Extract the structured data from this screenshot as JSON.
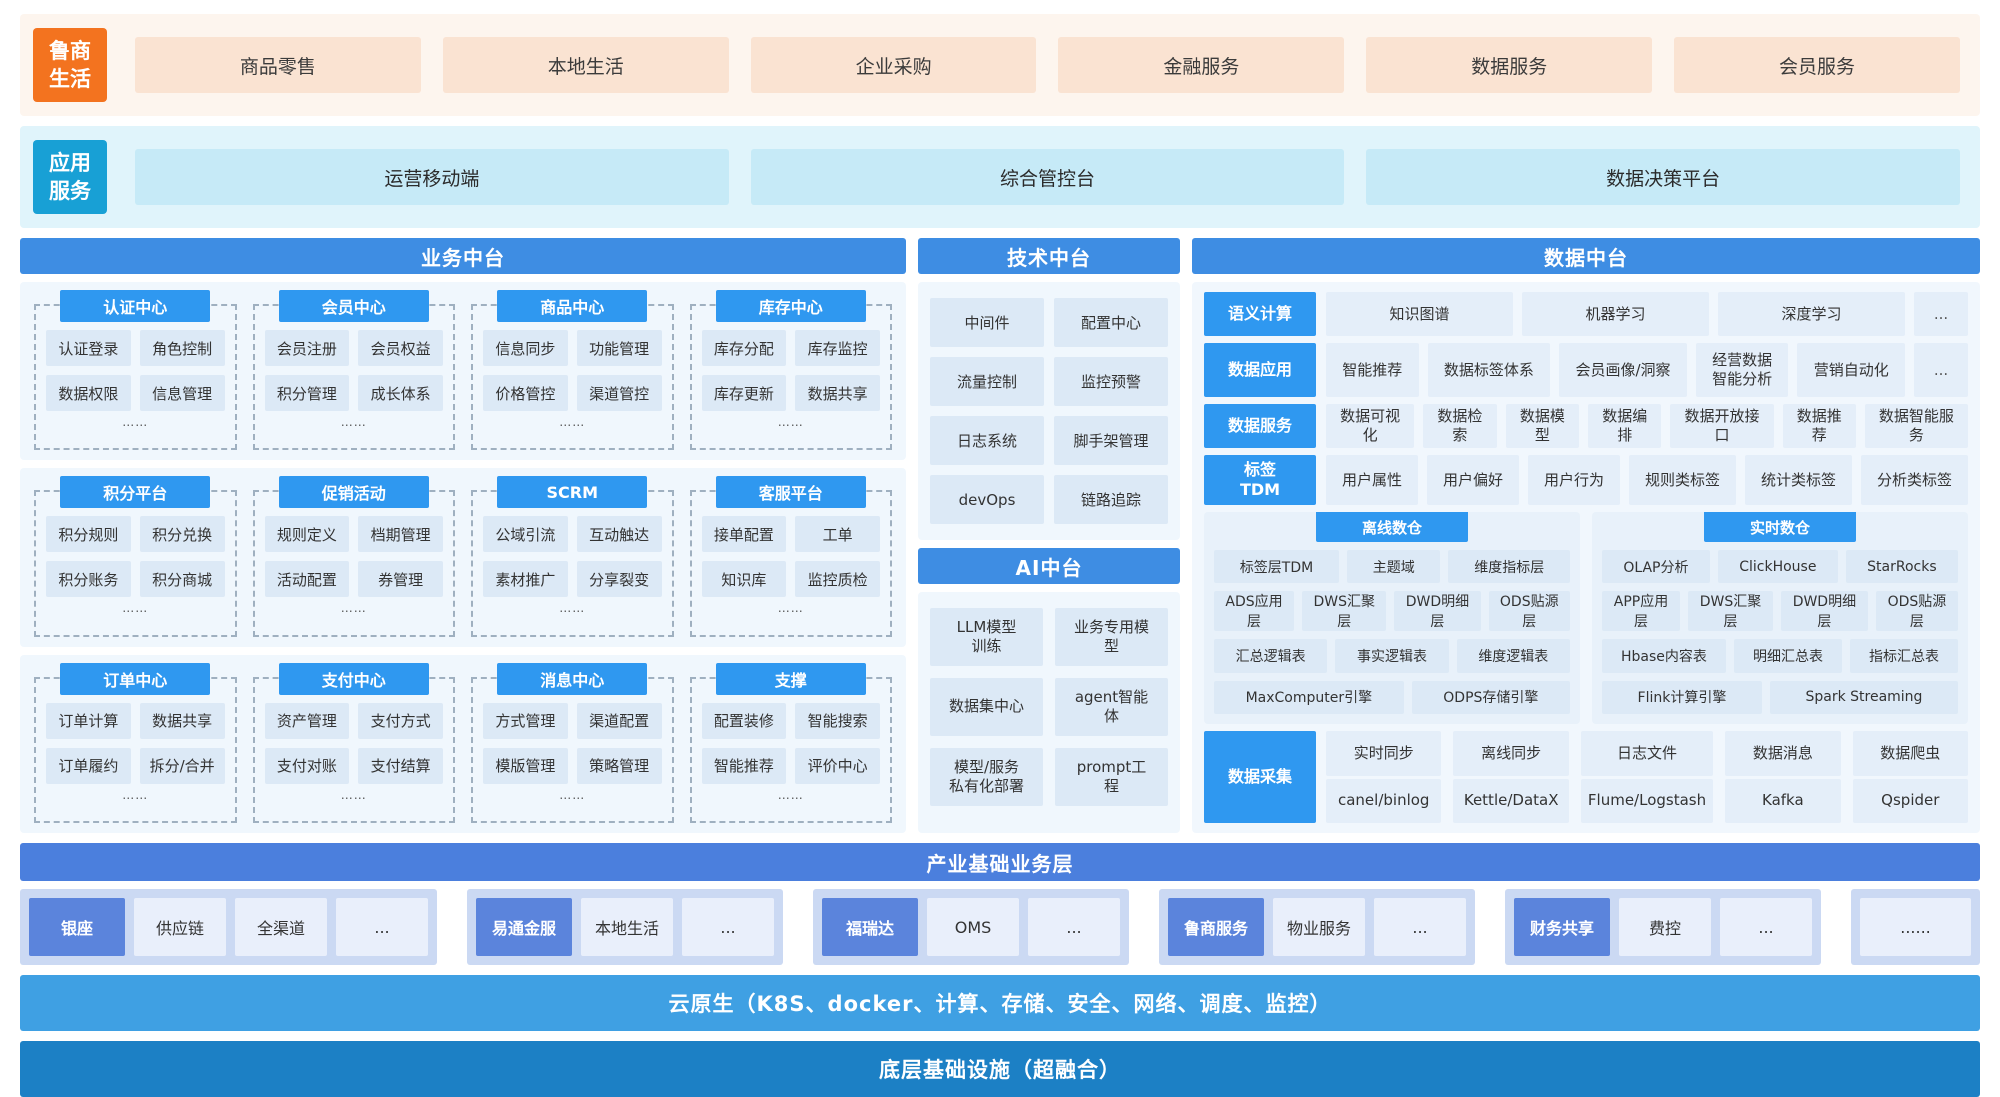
{
  "top_banner": {
    "logo": "鲁商\n生活",
    "tabs": [
      "商品零售",
      "本地生活",
      "企业采购",
      "金融服务",
      "数据服务",
      "会员服务"
    ]
  },
  "app_banner": {
    "logo": "应用\n服务",
    "items": [
      "运营移动端",
      "综合管控台",
      "数据决策平台"
    ]
  },
  "business": {
    "title": "业务中台",
    "dots": "……",
    "panels": [
      {
        "groups": [
          {
            "name": "认证中心",
            "items": [
              "认证登录",
              "角色控制",
              "数据权限",
              "信息管理"
            ]
          },
          {
            "name": "会员中心",
            "items": [
              "会员注册",
              "会员权益",
              "积分管理",
              "成长体系"
            ]
          },
          {
            "name": "商品中心",
            "items": [
              "信息同步",
              "功能管理",
              "价格管控",
              "渠道管控"
            ]
          },
          {
            "name": "库存中心",
            "items": [
              "库存分配",
              "库存监控",
              "库存更新",
              "数据共享"
            ]
          }
        ]
      },
      {
        "groups": [
          {
            "name": "积分平台",
            "items": [
              "积分规则",
              "积分兑换",
              "积分账务",
              "积分商城"
            ]
          },
          {
            "name": "促销活动",
            "items": [
              "规则定义",
              "档期管理",
              "活动配置",
              "券管理"
            ]
          },
          {
            "name": "SCRM",
            "items": [
              "公域引流",
              "互动触达",
              "素材推广",
              "分享裂变"
            ]
          },
          {
            "name": "客服平台",
            "items": [
              "接单配置",
              "工单",
              "知识库",
              "监控质检"
            ]
          }
        ]
      },
      {
        "groups": [
          {
            "name": "订单中心",
            "items": [
              "订单计算",
              "数据共享",
              "订单履约",
              "拆分/合并"
            ]
          },
          {
            "name": "支付中心",
            "items": [
              "资产管理",
              "支付方式",
              "支付对账",
              "支付结算"
            ]
          },
          {
            "name": "消息中心",
            "items": [
              "方式管理",
              "渠道配置",
              "模版管理",
              "策略管理"
            ]
          },
          {
            "name": "支撑",
            "items": [
              "配置装修",
              "智能搜索",
              "智能推荐",
              "评价中心"
            ]
          }
        ]
      }
    ]
  },
  "tech": {
    "title": "技术中台",
    "items": [
      "中间件",
      "配置中心",
      "流量控制",
      "监控预警",
      "日志系统",
      "脚手架管理",
      "devOps",
      "链路追踪"
    ]
  },
  "ai": {
    "title": "AI中台",
    "items": [
      "LLM模型\n训练",
      "业务专用模\n型",
      "数据集中心",
      "agent智能\n体",
      "模型/服务\n私有化部署",
      "prompt工\n程"
    ]
  },
  "data": {
    "title": "数据中台",
    "rows": [
      {
        "label": "语义计算",
        "items": [
          "知识图谱",
          "机器学习",
          "深度学习",
          "..."
        ]
      },
      {
        "label": "数据应用",
        "items": [
          "智能推荐",
          "数据标签体系",
          "会员画像/洞察",
          "经营数据\n智能分析",
          "营销自动化",
          "..."
        ]
      },
      {
        "label": "数据服务",
        "items": [
          "数据可视化",
          "数据检索",
          "数据模型",
          "数据编排",
          "数据开放接口",
          "数据推荐",
          "数据智能服务"
        ]
      },
      {
        "label": "标签\nTDM",
        "items": [
          "用户属性",
          "用户偏好",
          "用户行为",
          "规则类标签",
          "统计类标签",
          "分析类标签"
        ]
      }
    ],
    "warehouses": [
      {
        "name": "离线数仓",
        "rows": [
          [
            "标签层TDM",
            "主题域",
            "维度指标层"
          ],
          [
            "ADS应用层",
            "DWS汇聚层",
            "DWD明细层",
            "ODS贴源层"
          ],
          [
            "汇总逻辑表",
            "事实逻辑表",
            "维度逻辑表"
          ],
          [
            "MaxComputer引擎",
            "ODPS存储引擎"
          ]
        ]
      },
      {
        "name": "实时数仓",
        "rows": [
          [
            "OLAP分析",
            "ClickHouse",
            "StarRocks"
          ],
          [
            "APP应用层",
            "DWS汇聚层",
            "DWD明细层",
            "ODS贴源层"
          ],
          [
            "Hbase内容表",
            "明细汇总表",
            "指标汇总表"
          ],
          [
            "Flink计算引擎",
            "Spark Streaming"
          ]
        ]
      }
    ],
    "collection": {
      "label": "数据采集",
      "pairs": [
        [
          "实时同步",
          "canel/binlog"
        ],
        [
          "离线同步",
          "Kettle/DataX"
        ],
        [
          "日志文件",
          "Flume/Logstash"
        ],
        [
          "数据消息",
          "Kafka"
        ],
        [
          "数据爬虫",
          "Qspider"
        ]
      ]
    }
  },
  "industry": {
    "title": "产业基础业务层",
    "groups": [
      {
        "lead": "银座",
        "items": [
          "供应链",
          "全渠道",
          "..."
        ]
      },
      {
        "lead": "易通金服",
        "items": [
          "本地生活",
          "..."
        ]
      },
      {
        "lead": "福瑞达",
        "items": [
          "OMS",
          "..."
        ]
      },
      {
        "lead": "鲁商服务",
        "items": [
          "物业服务",
          "..."
        ]
      },
      {
        "lead": "财务共享",
        "items": [
          "费控",
          "..."
        ]
      }
    ],
    "more_group": {
      "item": "......"
    }
  },
  "cloud_bar": "云原生（K8S、docker、计算、存储、安全、网络、调度、监控）",
  "infra_bar": "底层基础设施（超融合）",
  "colors": {
    "brand_orange": "#f3731f",
    "banner_peach_bg": "#fdf5ee",
    "tab_peach": "#fae3d2",
    "app_cyan": "#18a0d5",
    "app_row_bg": "#e0f4fb",
    "app_item_bg": "#c6eaf7",
    "section_header_blue": "#3e8de3",
    "tag_blue": "#2f98f0",
    "panel_bg": "#f0f7fd",
    "cell_bg": "#dce9f6",
    "data_cell_bg": "#e4eef9",
    "industry_header_blue": "#4b7fdd",
    "industry_lead_blue": "#5b84dc",
    "industry_band_bg": "#cbd9f3",
    "cloud_bar_blue": "#3fa0e3",
    "infra_bar_blue": "#1c80c5"
  }
}
